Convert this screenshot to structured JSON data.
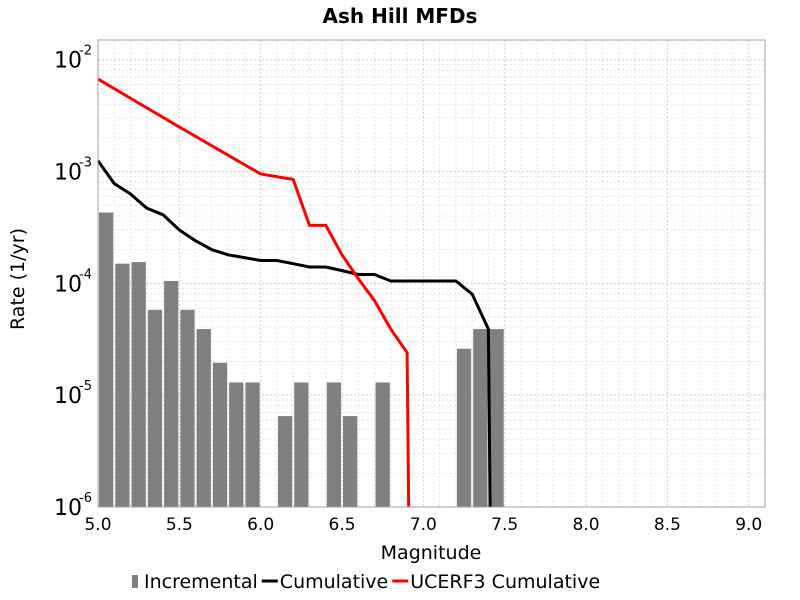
{
  "chart_data": {
    "type": "bar",
    "title": "Ash Hill MFDs",
    "xlabel": "Magnitude",
    "ylabel": "Rate (1/yr)",
    "xlim": [
      5.0,
      9.1
    ],
    "ylim": [
      1e-06,
      0.015
    ],
    "yscale": "log",
    "grid": true,
    "legend_position": "bottom",
    "x_ticks": [
      "5.0",
      "5.5",
      "6.0",
      "6.5",
      "7.0",
      "7.5",
      "8.0",
      "8.5",
      "9.0"
    ],
    "y_ticks": [
      {
        "base": "10",
        "exp": "-6"
      },
      {
        "base": "10",
        "exp": "-5"
      },
      {
        "base": "10",
        "exp": "-4"
      },
      {
        "base": "10",
        "exp": "-3"
      },
      {
        "base": "10",
        "exp": "-2"
      }
    ],
    "series": [
      {
        "name": "Incremental",
        "kind": "bar",
        "color": "#808080",
        "x": [
          5.05,
          5.15,
          5.25,
          5.35,
          5.45,
          5.55,
          5.65,
          5.75,
          5.85,
          5.95,
          6.05,
          6.15,
          6.25,
          6.35,
          6.45,
          6.55,
          6.65,
          6.75,
          6.85,
          6.95,
          7.05,
          7.15,
          7.25,
          7.35,
          7.45
        ],
        "values": [
          0.00043,
          0.00015,
          0.000155,
          5.8e-05,
          0.000105,
          5.8e-05,
          3.9e-05,
          1.95e-05,
          1.3e-05,
          1.3e-05,
          0,
          6.5e-06,
          1.3e-05,
          0,
          1.3e-05,
          6.5e-06,
          0,
          1.3e-05,
          0,
          0,
          0,
          0,
          2.6e-05,
          3.9e-05,
          3.9e-05
        ]
      },
      {
        "name": "Cumulative",
        "kind": "line",
        "color": "#000000",
        "x": [
          5.0,
          5.1,
          5.2,
          5.3,
          5.4,
          5.5,
          5.6,
          5.7,
          5.8,
          5.9,
          6.0,
          6.1,
          6.2,
          6.3,
          6.4,
          6.5,
          6.6,
          6.7,
          6.8,
          6.9,
          7.0,
          7.1,
          7.2,
          7.3,
          7.4,
          7.41
        ],
        "values": [
          0.00125,
          0.00078,
          0.00063,
          0.00047,
          0.00041,
          0.0003,
          0.00024,
          0.0002,
          0.00018,
          0.00017,
          0.00016,
          0.00016,
          0.00015,
          0.00014,
          0.00014,
          0.00013,
          0.00012,
          0.00012,
          0.000105,
          0.000105,
          0.000105,
          0.000105,
          0.000105,
          8e-05,
          3.9e-05,
          1e-06
        ]
      },
      {
        "name": "UCERF3 Cumulative",
        "kind": "line",
        "color": "#ff0000",
        "x": [
          5.0,
          5.5,
          6.0,
          6.2,
          6.3,
          6.4,
          6.5,
          6.6,
          6.7,
          6.8,
          6.9,
          6.91
        ],
        "values": [
          0.0067,
          0.0025,
          0.00095,
          0.00085,
          0.00033,
          0.00033,
          0.00018,
          0.00011,
          7e-05,
          3.9e-05,
          2.4e-05,
          1e-06
        ]
      }
    ]
  }
}
